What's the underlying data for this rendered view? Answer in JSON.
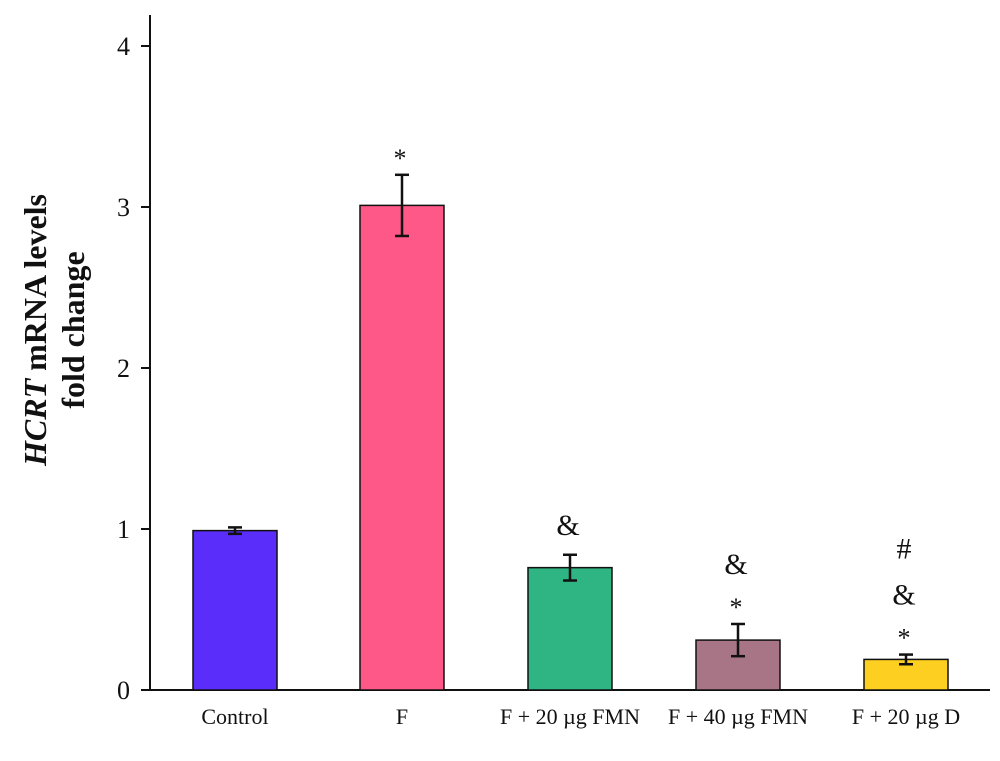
{
  "chart_data": {
    "type": "bar",
    "ylabel_italic": "HCRT",
    "ylabel_rest": " mRNA levels",
    "ylabel_line2": "fold change",
    "xlabel": "",
    "ylim": [
      0,
      4.2
    ],
    "yticks": [
      0,
      1,
      2,
      3,
      4
    ],
    "categories": [
      "Control",
      "F",
      "F + 20 µg FMN",
      "F + 40 µg FMN",
      "F + 20 µg D"
    ],
    "values": [
      0.99,
      3.01,
      0.76,
      0.31,
      0.19
    ],
    "errors": [
      0.02,
      0.19,
      0.08,
      0.1,
      0.03
    ],
    "colors": [
      "#5b2dfa",
      "#fe5889",
      "#2fb484",
      "#a77585",
      "#fdcf21"
    ],
    "annotations": [
      [],
      [
        "*"
      ],
      [
        "&"
      ],
      [
        "&",
        "*"
      ],
      [
        "#",
        "&",
        "*"
      ]
    ],
    "grid": false,
    "legend": "none"
  }
}
